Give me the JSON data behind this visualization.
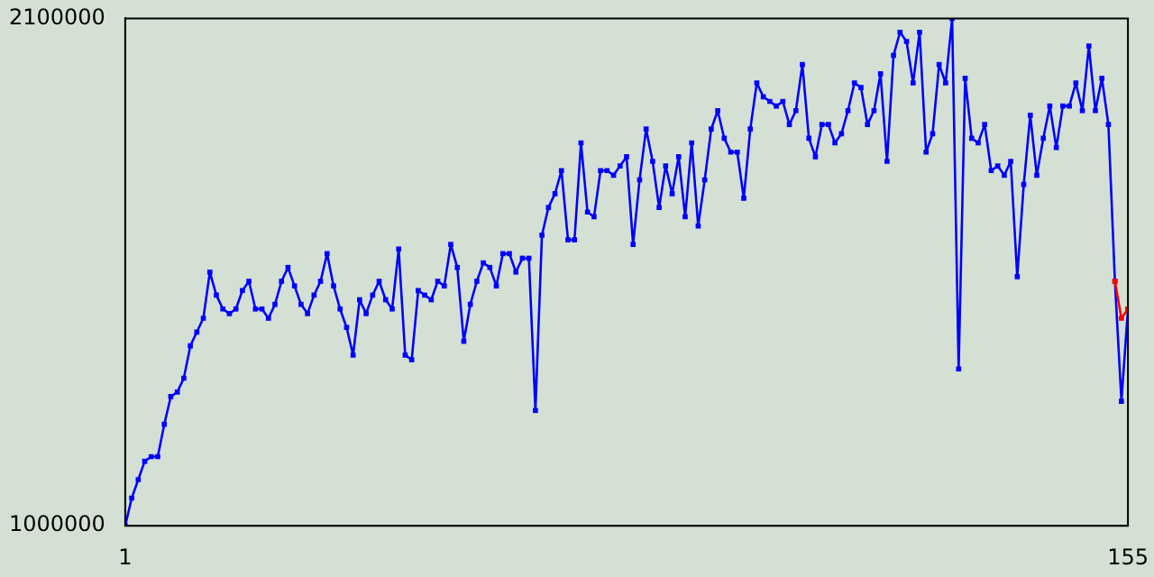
{
  "chart_data": {
    "type": "line",
    "x": [
      1,
      2,
      3,
      4,
      5,
      6,
      7,
      8,
      9,
      10,
      11,
      12,
      13,
      14,
      15,
      16,
      17,
      18,
      19,
      20,
      21,
      22,
      23,
      24,
      25,
      26,
      27,
      28,
      29,
      30,
      31,
      32,
      33,
      34,
      35,
      36,
      37,
      38,
      39,
      40,
      41,
      42,
      43,
      44,
      45,
      46,
      47,
      48,
      49,
      50,
      51,
      52,
      53,
      54,
      55,
      56,
      57,
      58,
      59,
      60,
      61,
      62,
      63,
      64,
      65,
      66,
      67,
      68,
      69,
      70,
      71,
      72,
      73,
      74,
      75,
      76,
      77,
      78,
      79,
      80,
      81,
      82,
      83,
      84,
      85,
      86,
      87,
      88,
      89,
      90,
      91,
      92,
      93,
      94,
      95,
      96,
      97,
      98,
      99,
      100,
      101,
      102,
      103,
      104,
      105,
      106,
      107,
      108,
      109,
      110,
      111,
      112,
      113,
      114,
      115,
      116,
      117,
      118,
      119,
      120,
      121,
      122,
      123,
      124,
      125,
      126,
      127,
      128,
      129,
      130,
      131,
      132,
      133,
      134,
      135,
      136,
      137,
      138,
      139,
      140,
      141,
      142,
      143,
      144,
      145,
      146,
      147,
      148,
      149,
      150,
      151,
      152,
      153,
      154,
      155
    ],
    "series": [
      {
        "color": "#0000ff",
        "values": [
          1000000,
          1060000,
          1100000,
          1140000,
          1150000,
          1150000,
          1220000,
          1280000,
          1290000,
          1320000,
          1390000,
          1420000,
          1450000,
          1550000,
          1500000,
          1470000,
          1460000,
          1470000,
          1510000,
          1530000,
          1470000,
          1470000,
          1450000,
          1480000,
          1530000,
          1560000,
          1520000,
          1480000,
          1460000,
          1500000,
          1530000,
          1590000,
          1520000,
          1470000,
          1430000,
          1370000,
          1490000,
          1460000,
          1500000,
          1530000,
          1490000,
          1470000,
          1600000,
          1370000,
          1360000,
          1510000,
          1500000,
          1490000,
          1530000,
          1520000,
          1610000,
          1560000,
          1400000,
          1480000,
          1530000,
          1570000,
          1560000,
          1520000,
          1590000,
          1590000,
          1550000,
          1580000,
          1580000,
          1250000,
          1630000,
          1690000,
          1720000,
          1770000,
          1620000,
          1620000,
          1830000,
          1680000,
          1670000,
          1770000,
          1770000,
          1760000,
          1780000,
          1800000,
          1610000,
          1750000,
          1860000,
          1790000,
          1690000,
          1780000,
          1720000,
          1800000,
          1670000,
          1830000,
          1650000,
          1750000,
          1860000,
          1900000,
          1840000,
          1810000,
          1810000,
          1710000,
          1860000,
          1960000,
          1930000,
          1920000,
          1910000,
          1920000,
          1870000,
          1900000,
          2000000,
          1840000,
          1800000,
          1870000,
          1870000,
          1830000,
          1850000,
          1900000,
          1960000,
          1950000,
          1870000,
          1900000,
          1980000,
          1790000,
          2020000,
          2070000,
          2050000,
          1960000,
          2070000,
          1810000,
          1850000,
          2000000,
          1960000,
          2100000,
          1340000,
          1970000,
          1840000,
          1830000,
          1870000,
          1770000,
          1780000,
          1760000,
          1790000,
          1540000,
          1740000,
          1890000,
          1760000,
          1840000,
          1910000,
          1820000,
          1910000,
          1910000,
          1960000,
          1900000,
          2040000,
          1900000,
          1970000,
          1870000,
          1530000,
          1270000,
          1470000
        ]
      },
      {
        "color": "#ff0000",
        "x": [
          153,
          154,
          155
        ],
        "values": [
          1530000,
          1450000,
          1470000
        ]
      }
    ],
    "xlim": [
      1,
      155
    ],
    "xticks": [
      1,
      155
    ],
    "ylim": [
      1000000,
      2100000
    ],
    "yticks": [
      1000000,
      2100000
    ],
    "grid": false,
    "legend": false,
    "marker": "square",
    "line_style": "solid"
  }
}
